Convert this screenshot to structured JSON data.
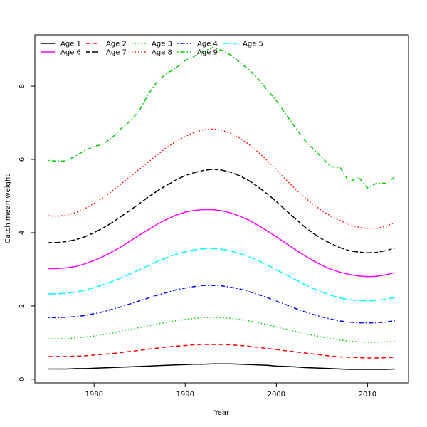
{
  "chart_data": {
    "type": "line",
    "title": "",
    "xlabel": "Year",
    "ylabel": "Catch mean weight",
    "xlim": [
      1973.5,
      2014.5
    ],
    "ylim": [
      -0.1,
      9.4
    ],
    "x_ticks": [
      1980,
      1990,
      2000,
      2010
    ],
    "y_ticks": [
      0,
      2,
      4,
      6,
      8
    ],
    "grid": false,
    "legend_position": "top-left",
    "x": [
      1975,
      1976,
      1977,
      1978,
      1979,
      1980,
      1981,
      1982,
      1983,
      1984,
      1985,
      1986,
      1987,
      1988,
      1989,
      1990,
      1991,
      1992,
      1993,
      1994,
      1995,
      1996,
      1997,
      1998,
      1999,
      2000,
      2001,
      2002,
      2003,
      2004,
      2005,
      2006,
      2007,
      2008,
      2009,
      2010,
      2011,
      2012,
      2013
    ],
    "series": [
      {
        "name": "Age 1",
        "color": "#000000",
        "dash": "solid",
        "values": [
          0.28,
          0.28,
          0.28,
          0.29,
          0.29,
          0.3,
          0.31,
          0.32,
          0.33,
          0.34,
          0.35,
          0.36,
          0.37,
          0.38,
          0.39,
          0.4,
          0.41,
          0.41,
          0.42,
          0.42,
          0.42,
          0.41,
          0.4,
          0.39,
          0.38,
          0.36,
          0.35,
          0.34,
          0.32,
          0.31,
          0.3,
          0.29,
          0.28,
          0.27,
          0.27,
          0.27,
          0.27,
          0.27,
          0.28
        ]
      },
      {
        "name": "Age 2",
        "color": "#ff0000",
        "dash": "dashed",
        "values": [
          0.62,
          0.62,
          0.62,
          0.63,
          0.64,
          0.66,
          0.68,
          0.7,
          0.73,
          0.76,
          0.79,
          0.82,
          0.85,
          0.88,
          0.9,
          0.92,
          0.94,
          0.95,
          0.95,
          0.95,
          0.94,
          0.92,
          0.9,
          0.87,
          0.84,
          0.81,
          0.78,
          0.75,
          0.72,
          0.69,
          0.66,
          0.63,
          0.61,
          0.6,
          0.59,
          0.58,
          0.58,
          0.59,
          0.6
        ]
      },
      {
        "name": "Age 3",
        "color": "#00cc00",
        "dash": "dotted",
        "values": [
          1.1,
          1.1,
          1.11,
          1.13,
          1.15,
          1.18,
          1.22,
          1.26,
          1.31,
          1.36,
          1.41,
          1.46,
          1.51,
          1.56,
          1.6,
          1.63,
          1.66,
          1.68,
          1.69,
          1.68,
          1.66,
          1.63,
          1.59,
          1.54,
          1.49,
          1.43,
          1.37,
          1.31,
          1.25,
          1.2,
          1.15,
          1.11,
          1.07,
          1.04,
          1.02,
          1.01,
          1.01,
          1.02,
          1.04
        ]
      },
      {
        "name": "Age 4",
        "color": "#0000ff",
        "dash": "dashdot",
        "values": [
          1.68,
          1.68,
          1.69,
          1.71,
          1.74,
          1.79,
          1.84,
          1.91,
          1.98,
          2.06,
          2.14,
          2.22,
          2.3,
          2.37,
          2.44,
          2.49,
          2.53,
          2.56,
          2.56,
          2.55,
          2.51,
          2.46,
          2.39,
          2.31,
          2.23,
          2.13,
          2.04,
          1.94,
          1.85,
          1.77,
          1.7,
          1.64,
          1.59,
          1.56,
          1.54,
          1.54,
          1.54,
          1.56,
          1.6
        ]
      },
      {
        "name": "Age 5",
        "color": "#00ffff",
        "dash": "longdash",
        "values": [
          2.33,
          2.33,
          2.35,
          2.38,
          2.43,
          2.5,
          2.58,
          2.67,
          2.77,
          2.88,
          2.99,
          3.11,
          3.22,
          3.32,
          3.41,
          3.48,
          3.53,
          3.56,
          3.57,
          3.55,
          3.5,
          3.43,
          3.34,
          3.24,
          3.12,
          2.99,
          2.86,
          2.73,
          2.6,
          2.48,
          2.38,
          2.29,
          2.22,
          2.17,
          2.15,
          2.14,
          2.15,
          2.18,
          2.23
        ]
      },
      {
        "name": "Age 6",
        "color": "#ff00ff",
        "dash": "solid",
        "values": [
          3.02,
          3.02,
          3.04,
          3.08,
          3.15,
          3.24,
          3.35,
          3.48,
          3.62,
          3.78,
          3.94,
          4.09,
          4.24,
          4.37,
          4.48,
          4.56,
          4.61,
          4.63,
          4.63,
          4.6,
          4.54,
          4.45,
          4.34,
          4.2,
          4.05,
          3.89,
          3.72,
          3.55,
          3.39,
          3.24,
          3.11,
          3.0,
          2.92,
          2.86,
          2.82,
          2.8,
          2.81,
          2.85,
          2.91
        ]
      },
      {
        "name": "Age 7",
        "color": "#000000",
        "dash": "twodash",
        "values": [
          3.73,
          3.73,
          3.76,
          3.81,
          3.89,
          4.0,
          4.13,
          4.28,
          4.45,
          4.62,
          4.8,
          4.98,
          5.15,
          5.3,
          5.44,
          5.56,
          5.64,
          5.7,
          5.73,
          5.71,
          5.65,
          5.55,
          5.42,
          5.25,
          5.06,
          4.85,
          4.62,
          4.4,
          4.18,
          3.99,
          3.83,
          3.7,
          3.59,
          3.51,
          3.47,
          3.45,
          3.46,
          3.51,
          3.58
        ]
      },
      {
        "name": "Age 8",
        "color": "#ff0000",
        "dash": "dotted",
        "values": [
          4.46,
          4.45,
          4.48,
          4.55,
          4.66,
          4.8,
          4.96,
          5.14,
          5.34,
          5.54,
          5.74,
          5.94,
          6.14,
          6.33,
          6.49,
          6.63,
          6.74,
          6.81,
          6.83,
          6.8,
          6.71,
          6.58,
          6.41,
          6.2,
          5.97,
          5.72,
          5.46,
          5.21,
          4.98,
          4.78,
          4.6,
          4.45,
          4.33,
          4.22,
          4.15,
          4.12,
          4.12,
          4.17,
          4.28
        ]
      },
      {
        "name": "Age 9",
        "color": "#00cc00",
        "dash": "dashdot",
        "values": [
          5.97,
          5.95,
          5.96,
          6.1,
          6.25,
          6.35,
          6.42,
          6.6,
          6.85,
          7.05,
          7.35,
          7.8,
          8.15,
          8.35,
          8.5,
          8.7,
          8.82,
          8.95,
          9.05,
          8.98,
          8.85,
          8.65,
          8.45,
          8.2,
          7.9,
          7.6,
          7.25,
          6.9,
          6.55,
          6.3,
          6.05,
          5.8,
          5.78,
          5.38,
          5.52,
          5.22,
          5.35,
          5.35,
          5.52
        ]
      }
    ]
  }
}
